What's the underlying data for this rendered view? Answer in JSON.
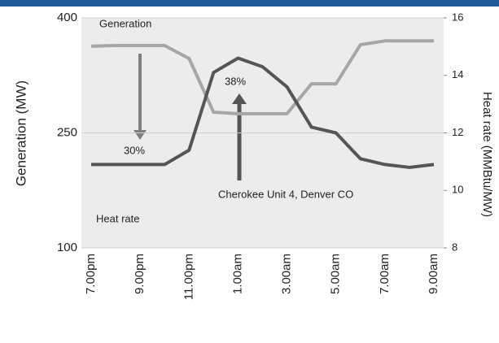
{
  "chart_data": {
    "type": "line",
    "categories": [
      "7.00pm",
      null,
      "9.00pm",
      null,
      "11.00pm",
      null,
      "1.00am",
      null,
      "3.00am",
      null,
      "5.00am",
      null,
      "7.00am",
      null,
      "9.00am"
    ],
    "series": [
      {
        "name": "Generation",
        "color": "#a6a6a6",
        "values": [
          363,
          364,
          364,
          364,
          347,
          277,
          275,
          275,
          275,
          314,
          314,
          365,
          370,
          370,
          370
        ]
      },
      {
        "name": "Heat rate",
        "color": "#555555",
        "axis": "y2",
        "values": [
          10.9,
          10.9,
          10.9,
          10.9,
          11.4,
          14.1,
          14.6,
          14.3,
          13.6,
          12.2,
          12.0,
          11.1,
          10.9,
          10.8,
          10.9
        ]
      }
    ],
    "ylabel": "Generation (MW)",
    "y2label": "Heat rate (MMBtu/MW)",
    "ylim": [
      100,
      400
    ],
    "yticks": [
      100,
      250,
      400
    ],
    "y2lim": [
      8,
      16
    ],
    "y2ticks": [
      8,
      10,
      12,
      14,
      16
    ],
    "annotations": [
      "30%",
      "38%",
      "Cherokee Unit 4, Denver CO"
    ],
    "grid": true
  }
}
